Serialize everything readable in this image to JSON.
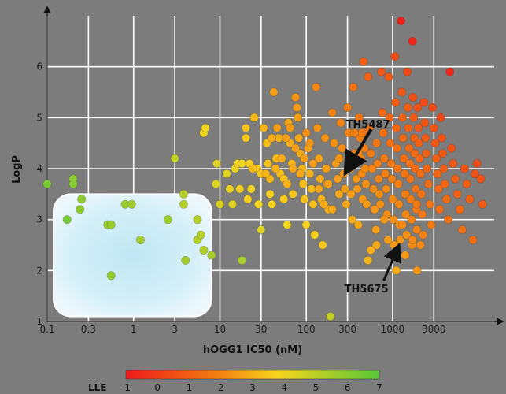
{
  "chart_data": {
    "type": "scatter",
    "xlabel": "hOGG1 IC50 (nM)",
    "ylabel": "LogP",
    "x_scale": "log",
    "xlim": [
      0.1,
      15000
    ],
    "ylim": [
      1,
      7
    ],
    "x_ticks": [
      {
        "v": 0.1,
        "label": "0.1"
      },
      {
        "v": 0.3,
        "label": "0.3"
      },
      {
        "v": 1,
        "label": "1"
      },
      {
        "v": 3,
        "label": "3"
      },
      {
        "v": 10,
        "label": "10"
      },
      {
        "v": 30,
        "label": "30"
      },
      {
        "v": 100,
        "label": "100"
      },
      {
        "v": 300,
        "label": "300"
      },
      {
        "v": 1000,
        "label": "1000"
      },
      {
        "v": 3000,
        "label": "3000"
      }
    ],
    "y_ticks": [
      {
        "v": 1,
        "label": "1"
      },
      {
        "v": 2,
        "label": "2"
      },
      {
        "v": 3,
        "label": "3"
      },
      {
        "v": 4,
        "label": "4"
      },
      {
        "v": 5,
        "label": "5"
      },
      {
        "v": 6,
        "label": "6"
      }
    ],
    "grid": true,
    "colorbar": {
      "label": "LLE",
      "ticks": [
        "-1",
        "0",
        "1",
        "2",
        "3",
        "4",
        "5",
        "6",
        "7"
      ],
      "min": -1,
      "max": 7,
      "colors": [
        "#ee1a1a",
        "#f27a12",
        "#f7d51e",
        "#58c636"
      ]
    },
    "highlight_region": {
      "x_range": [
        0.1,
        8
      ],
      "y_range": [
        1.1,
        3.5
      ]
    },
    "annotations": [
      {
        "text": "TH5487",
        "x": 300,
        "y": 4.0
      },
      {
        "text": "TH5675",
        "x": 1150,
        "y": 2.5
      }
    ],
    "points": [
      [
        0.1,
        3.7,
        6.3
      ],
      [
        0.2,
        3.8,
        6.0
      ],
      [
        0.2,
        3.7,
        6.1
      ],
      [
        0.25,
        3.4,
        5.9
      ],
      [
        0.17,
        3.0,
        6.4
      ],
      [
        0.24,
        3.2,
        5.9
      ],
      [
        0.5,
        2.9,
        5.8
      ],
      [
        0.55,
        2.9,
        5.7
      ],
      [
        0.55,
        1.9,
        5.9
      ],
      [
        0.8,
        3.3,
        5.7
      ],
      [
        0.95,
        3.3,
        5.6
      ],
      [
        1.2,
        2.6,
        5.5
      ],
      [
        2.5,
        3.0,
        5.6
      ],
      [
        3.0,
        4.2,
        4.9
      ],
      [
        3.8,
        3.5,
        5.1
      ],
      [
        3.8,
        3.3,
        5.2
      ],
      [
        4.0,
        2.2,
        5.5
      ],
      [
        5.5,
        2.6,
        5.2
      ],
      [
        5.5,
        3.0,
        5.1
      ],
      [
        6.5,
        2.4,
        5.2
      ],
      [
        6.0,
        2.7,
        5.1
      ],
      [
        8.0,
        2.3,
        5.4
      ],
      [
        18,
        2.2,
        5.4
      ],
      [
        6.5,
        4.7,
        4.0
      ],
      [
        6.8,
        4.8,
        3.9
      ],
      [
        9,
        3.7,
        4.4
      ],
      [
        9.2,
        4.1,
        4.3
      ],
      [
        10,
        3.3,
        4.4
      ],
      [
        12,
        3.9,
        4.3
      ],
      [
        13,
        3.6,
        4.1
      ],
      [
        15,
        4.0,
        4.1
      ],
      [
        14,
        3.3,
        4.3
      ],
      [
        16,
        4.1,
        3.8
      ],
      [
        18,
        4.1,
        3.9
      ],
      [
        20,
        4.8,
        3.4
      ],
      [
        20,
        4.6,
        3.5
      ],
      [
        22,
        4.1,
        3.6
      ],
      [
        23,
        3.6,
        4.0
      ],
      [
        25,
        5.0,
        3.2
      ],
      [
        27,
        4.0,
        3.5
      ],
      [
        30,
        3.9,
        3.5
      ],
      [
        28,
        3.3,
        3.9
      ],
      [
        32,
        4.8,
        3.1
      ],
      [
        35,
        4.5,
        3.3
      ],
      [
        36,
        4.1,
        3.4
      ],
      [
        38,
        3.5,
        3.7
      ],
      [
        40,
        3.3,
        3.8
      ],
      [
        30,
        2.8,
        4.3
      ],
      [
        42,
        5.5,
        2.6
      ],
      [
        45,
        4.2,
        3.2
      ],
      [
        48,
        4.6,
        3.0
      ],
      [
        50,
        3.9,
        3.3
      ],
      [
        55,
        3.8,
        3.3
      ],
      [
        55,
        3.4,
        3.6
      ],
      [
        60,
        2.9,
        3.9
      ],
      [
        62,
        4.9,
        2.7
      ],
      [
        65,
        4.5,
        3.0
      ],
      [
        68,
        4.1,
        3.1
      ],
      [
        70,
        3.5,
        3.5
      ],
      [
        75,
        5.4,
        2.4
      ],
      [
        78,
        5.2,
        2.5
      ],
      [
        80,
        5.0,
        2.6
      ],
      [
        82,
        4.6,
        2.8
      ],
      [
        85,
        4.3,
        2.9
      ],
      [
        90,
        4.0,
        3.1
      ],
      [
        92,
        3.7,
        3.3
      ],
      [
        95,
        3.4,
        3.4
      ],
      [
        100,
        2.9,
        3.7
      ],
      [
        105,
        4.4,
        2.7
      ],
      [
        110,
        3.9,
        3.0
      ],
      [
        115,
        3.6,
        3.2
      ],
      [
        120,
        3.3,
        3.3
      ],
      [
        125,
        2.7,
        3.7
      ],
      [
        130,
        5.6,
        2.0
      ],
      [
        135,
        4.8,
        2.4
      ],
      [
        140,
        4.2,
        2.7
      ],
      [
        145,
        3.8,
        2.9
      ],
      [
        150,
        3.4,
        3.1
      ],
      [
        155,
        2.5,
        3.5
      ],
      [
        165,
        4.6,
        2.3
      ],
      [
        170,
        4.0,
        2.6
      ],
      [
        175,
        3.7,
        2.8
      ],
      [
        180,
        3.2,
        3.0
      ],
      [
        190,
        1.1,
        4.8
      ],
      [
        200,
        5.1,
        2.0
      ],
      [
        210,
        4.5,
        2.3
      ],
      [
        220,
        4.1,
        2.5
      ],
      [
        230,
        3.8,
        2.6
      ],
      [
        240,
        3.5,
        2.8
      ],
      [
        250,
        4.9,
        2.0
      ],
      [
        260,
        4.4,
        2.2
      ],
      [
        270,
        3.9,
        2.4
      ],
      [
        280,
        3.6,
        2.6
      ],
      [
        290,
        3.3,
        2.8
      ],
      [
        300,
        5.2,
        1.8
      ],
      [
        310,
        4.7,
        2.0
      ],
      [
        320,
        4.0,
        2.3
      ],
      [
        330,
        3.5,
        2.6
      ],
      [
        340,
        3.0,
        2.9
      ],
      [
        350,
        5.6,
        1.5
      ],
      [
        360,
        4.3,
        2.1
      ],
      [
        370,
        4.1,
        2.2
      ],
      [
        380,
        3.8,
        2.4
      ],
      [
        390,
        3.6,
        2.5
      ],
      [
        400,
        2.9,
        2.8
      ],
      [
        410,
        5.0,
        1.7
      ],
      [
        420,
        4.6,
        1.9
      ],
      [
        430,
        4.2,
        2.1
      ],
      [
        440,
        3.9,
        2.2
      ],
      [
        450,
        3.4,
        2.5
      ],
      [
        460,
        6.1,
        1.0
      ],
      [
        470,
        4.4,
        1.9
      ],
      [
        480,
        4.0,
        2.1
      ],
      [
        490,
        3.7,
        2.3
      ],
      [
        500,
        3.3,
        2.5
      ],
      [
        520,
        5.8,
        1.1
      ],
      [
        540,
        4.8,
        1.6
      ],
      [
        560,
        4.3,
        1.8
      ],
      [
        580,
        4.0,
        2.0
      ],
      [
        600,
        3.6,
        2.2
      ],
      [
        620,
        3.2,
        2.4
      ],
      [
        640,
        2.8,
        2.6
      ],
      [
        650,
        4.5,
        1.7
      ],
      [
        670,
        4.1,
        1.9
      ],
      [
        690,
        3.8,
        2.0
      ],
      [
        700,
        3.5,
        2.2
      ],
      [
        720,
        3.3,
        2.3
      ],
      [
        740,
        5.9,
        0.8
      ],
      [
        760,
        5.1,
        1.3
      ],
      [
        780,
        4.7,
        1.5
      ],
      [
        800,
        4.2,
        1.8
      ],
      [
        820,
        3.9,
        1.9
      ],
      [
        840,
        3.6,
        2.1
      ],
      [
        860,
        3.1,
        2.3
      ],
      [
        880,
        2.6,
        2.6
      ],
      [
        900,
        5.8,
        0.8
      ],
      [
        920,
        5.0,
        1.2
      ],
      [
        940,
        4.5,
        1.5
      ],
      [
        960,
        4.1,
        1.7
      ],
      [
        980,
        3.8,
        1.9
      ],
      [
        1000,
        3.4,
        2.1
      ],
      [
        1020,
        3.0,
        2.3
      ],
      [
        1040,
        2.5,
        2.5
      ],
      [
        1060,
        6.2,
        0.5
      ],
      [
        1080,
        5.3,
        1.0
      ],
      [
        1100,
        4.8,
        1.3
      ],
      [
        1120,
        4.4,
        1.5
      ],
      [
        1140,
        4.0,
        1.7
      ],
      [
        1160,
        3.7,
        1.9
      ],
      [
        1180,
        3.3,
        2.1
      ],
      [
        1200,
        2.9,
        2.3
      ],
      [
        1220,
        2.6,
        2.4
      ],
      [
        1250,
        6.9,
        -0.8
      ],
      [
        1280,
        5.5,
        0.8
      ],
      [
        1300,
        5.0,
        1.1
      ],
      [
        1320,
        4.6,
        1.3
      ],
      [
        1350,
        4.2,
        1.5
      ],
      [
        1380,
        3.9,
        1.7
      ],
      [
        1400,
        3.5,
        1.9
      ],
      [
        1420,
        3.1,
        2.1
      ],
      [
        1450,
        2.7,
        2.3
      ],
      [
        1480,
        5.9,
        0.3
      ],
      [
        1500,
        5.2,
        0.9
      ],
      [
        1520,
        4.8,
        1.1
      ],
      [
        1550,
        4.4,
        1.3
      ],
      [
        1580,
        4.1,
        1.5
      ],
      [
        1600,
        3.8,
        1.6
      ],
      [
        1620,
        3.4,
        1.8
      ],
      [
        1650,
        3.0,
        2.0
      ],
      [
        1680,
        2.5,
        2.2
      ],
      [
        1700,
        6.5,
        -0.6
      ],
      [
        1720,
        5.4,
        0.5
      ],
      [
        1750,
        5.0,
        0.9
      ],
      [
        1780,
        4.6,
        1.1
      ],
      [
        1800,
        4.3,
        1.3
      ],
      [
        1820,
        4.0,
        1.4
      ],
      [
        1850,
        3.6,
        1.6
      ],
      [
        1880,
        3.2,
        1.8
      ],
      [
        1900,
        2.8,
        2.0
      ],
      [
        1920,
        2.0,
        2.4
      ],
      [
        1950,
        5.2,
        0.6
      ],
      [
        1980,
        4.8,
        0.9
      ],
      [
        2000,
        4.5,
        1.1
      ],
      [
        2050,
        4.2,
        1.2
      ],
      [
        2100,
        3.9,
        1.4
      ],
      [
        2150,
        3.5,
        1.6
      ],
      [
        2200,
        3.1,
        1.8
      ],
      [
        2250,
        2.7,
        2.0
      ],
      [
        2300,
        5.3,
        0.4
      ],
      [
        2350,
        4.9,
        0.7
      ],
      [
        2400,
        4.6,
        0.9
      ],
      [
        2450,
        4.3,
        1.1
      ],
      [
        2500,
        4.0,
        1.2
      ],
      [
        2600,
        3.7,
        1.4
      ],
      [
        2700,
        3.3,
        1.6
      ],
      [
        2800,
        2.9,
        1.8
      ],
      [
        2900,
        5.2,
        0.3
      ],
      [
        3000,
        4.8,
        0.6
      ],
      [
        3100,
        4.5,
        0.8
      ],
      [
        3200,
        4.2,
        1.0
      ],
      [
        3300,
        3.9,
        1.2
      ],
      [
        3400,
        3.6,
        1.3
      ],
      [
        3500,
        3.2,
        1.5
      ],
      [
        3600,
        5.0,
        0.3
      ],
      [
        3700,
        4.6,
        0.6
      ],
      [
        3800,
        4.3,
        0.8
      ],
      [
        3900,
        4.0,
        1.0
      ],
      [
        4000,
        3.7,
        1.2
      ],
      [
        4200,
        3.4,
        1.3
      ],
      [
        4400,
        3.0,
        1.5
      ],
      [
        4600,
        5.9,
        -0.6
      ],
      [
        4800,
        4.4,
        0.6
      ],
      [
        5000,
        4.1,
        0.8
      ],
      [
        5300,
        3.8,
        1.0
      ],
      [
        5600,
        3.5,
        1.1
      ],
      [
        6000,
        3.2,
        1.3
      ],
      [
        6400,
        2.8,
        1.5
      ],
      [
        6800,
        4.0,
        0.7
      ],
      [
        7200,
        3.7,
        0.9
      ],
      [
        7800,
        3.4,
        1.0
      ],
      [
        8500,
        2.6,
        1.5
      ],
      [
        9000,
        3.9,
        0.6
      ],
      [
        9500,
        4.1,
        0.5
      ],
      [
        10500,
        3.8,
        0.6
      ],
      [
        11000,
        3.3,
        0.9
      ],
      [
        1900,
        3.3,
        1.8
      ],
      [
        2100,
        2.5,
        2.1
      ],
      [
        1700,
        2.6,
        2.1
      ],
      [
        1400,
        2.3,
        2.4
      ],
      [
        1100,
        2.0,
        2.8
      ],
      [
        1300,
        2.9,
        2.1
      ],
      [
        800,
        3.0,
        2.4
      ],
      [
        650,
        2.5,
        2.8
      ],
      [
        560,
        2.4,
        2.9
      ],
      [
        520,
        2.2,
        3.1
      ],
      [
        480,
        4.7,
        1.6
      ],
      [
        440,
        4.7,
        1.8
      ],
      [
        400,
        4.3,
        2.1
      ],
      [
        360,
        4.7,
        1.9
      ],
      [
        240,
        4.2,
        2.4
      ],
      [
        200,
        3.2,
        2.8
      ],
      [
        180,
        3.7,
        2.6
      ],
      [
        160,
        3.3,
        2.8
      ],
      [
        140,
        3.6,
        2.7
      ],
      [
        120,
        4.1,
        2.5
      ],
      [
        110,
        4.5,
        2.4
      ],
      [
        100,
        4.7,
        2.3
      ],
      [
        95,
        4.2,
        2.6
      ],
      [
        85,
        3.9,
        2.8
      ],
      [
        75,
        4.4,
        2.6
      ],
      [
        70,
        4.0,
        2.8
      ],
      [
        65,
        4.8,
        2.5
      ],
      [
        60,
        3.7,
        3.0
      ],
      [
        58,
        4.6,
        2.6
      ],
      [
        52,
        4.2,
        2.9
      ],
      [
        46,
        4.8,
        2.6
      ],
      [
        44,
        4.0,
        3.0
      ],
      [
        40,
        4.6,
        2.8
      ],
      [
        38,
        3.8,
        3.1
      ],
      [
        34,
        3.9,
        3.1
      ],
      [
        24,
        4.0,
        3.3
      ],
      [
        21,
        3.4,
        3.7
      ],
      [
        17,
        3.6,
        3.7
      ]
    ]
  }
}
